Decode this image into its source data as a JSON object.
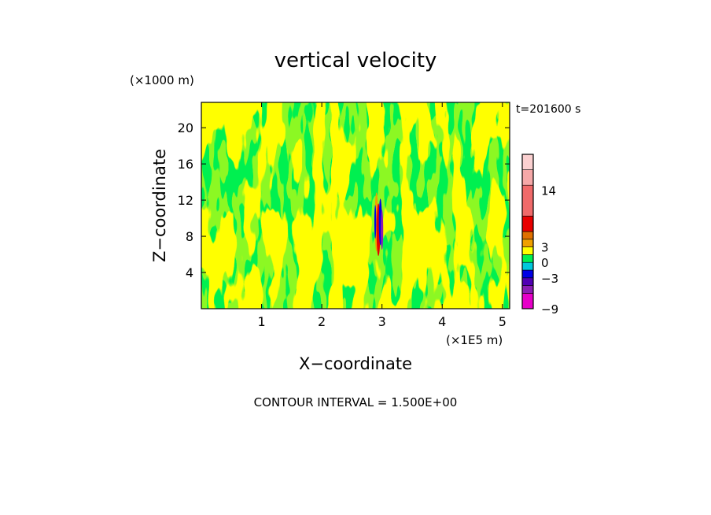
{
  "chart_data": {
    "type": "heatmap",
    "title": "vertical velocity",
    "xlabel": "X−coordinate",
    "ylabel": "Z−coordinate",
    "x_unit": "(×1E5 m)",
    "y_unit": "(×1000 m)",
    "time_label": "t=201600 s",
    "footer": "CONTOUR INTERVAL = 1.500E+00",
    "xlim": [
      0,
      5.12
    ],
    "ylim": [
      0,
      22.8
    ],
    "x_ticks": [
      1,
      2,
      3,
      4,
      5
    ],
    "y_ticks": [
      4,
      8,
      12,
      16,
      20
    ],
    "grid": false,
    "colorbar": {
      "placement": "right",
      "tick_labels": [
        {
          "value": 14,
          "text": "14"
        },
        {
          "value": 3,
          "text": "3"
        },
        {
          "value": 0,
          "text": "0"
        },
        {
          "value": -3,
          "text": "−3"
        },
        {
          "value": -9,
          "text": "−9"
        }
      ],
      "bands": [
        {
          "from": -9,
          "to": -6,
          "color": "#e600c8"
        },
        {
          "from": -6,
          "to": -4.5,
          "color": "#8c1eb4"
        },
        {
          "from": -4.5,
          "to": -3,
          "color": "#5000b4"
        },
        {
          "from": -3,
          "to": -1.5,
          "color": "#0000e6"
        },
        {
          "from": -1.5,
          "to": 0,
          "color": "#00c8dc"
        },
        {
          "from": 0,
          "to": 1.5,
          "color": "#00f050"
        },
        {
          "from": 1.5,
          "to": 3,
          "color": "#ffff00"
        },
        {
          "from": 3,
          "to": 4.5,
          "color": "#f0a000"
        },
        {
          "from": 4.5,
          "to": 6,
          "color": "#e07000"
        },
        {
          "from": 6,
          "to": 9,
          "color": "#e80000"
        },
        {
          "from": 9,
          "to": 15,
          "color": "#f06a6a"
        },
        {
          "from": 15,
          "to": 18,
          "color": "#f5a8a8"
        },
        {
          "from": 18,
          "to": 21,
          "color": "#fbd0d0"
        }
      ]
    },
    "field": {
      "background_color": "#00f050",
      "dominant_color": "#ffff00",
      "updraft_column": {
        "x_center": 2.96,
        "z_range": [
          6,
          12.5
        ],
        "colors": [
          "#e80000",
          "#f0a000",
          "#0000e6",
          "#8c1eb4"
        ]
      }
    }
  }
}
